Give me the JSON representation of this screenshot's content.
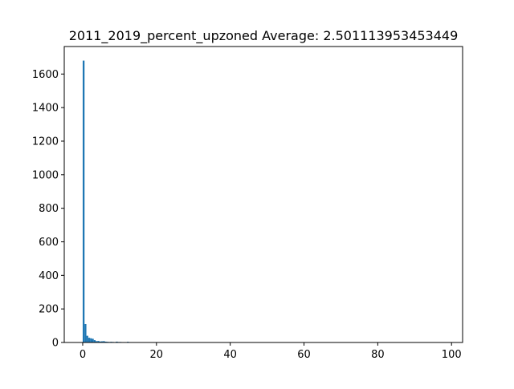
{
  "chart_data": {
    "type": "bar",
    "title": "2011_2019_percent_upzoned  Average: 2.501113953453449",
    "xlabel": "",
    "ylabel": "",
    "xlim": [
      -5,
      103
    ],
    "ylim": [
      0,
      1764
    ],
    "xticks": [
      0,
      20,
      40,
      60,
      80,
      100
    ],
    "yticks": [
      0,
      200,
      400,
      600,
      800,
      1000,
      1200,
      1400,
      1600
    ],
    "grid": false,
    "legend": "none",
    "bar_color": "#1f77b4",
    "bin_width": 0.5,
    "bins": [
      {
        "x": 0.0,
        "value": 1680
      },
      {
        "x": 0.5,
        "value": 110
      },
      {
        "x": 1.0,
        "value": 40
      },
      {
        "x": 1.5,
        "value": 28
      },
      {
        "x": 2.0,
        "value": 25
      },
      {
        "x": 2.5,
        "value": 22
      },
      {
        "x": 3.0,
        "value": 14
      },
      {
        "x": 3.5,
        "value": 8
      },
      {
        "x": 4.0,
        "value": 9
      },
      {
        "x": 4.5,
        "value": 6
      },
      {
        "x": 5.0,
        "value": 7
      },
      {
        "x": 5.5,
        "value": 8
      },
      {
        "x": 6.0,
        "value": 5
      },
      {
        "x": 6.5,
        "value": 4
      },
      {
        "x": 7.0,
        "value": 3
      },
      {
        "x": 7.5,
        "value": 4
      },
      {
        "x": 8.0,
        "value": 3
      },
      {
        "x": 8.5,
        "value": 2
      },
      {
        "x": 9.0,
        "value": 5
      },
      {
        "x": 9.5,
        "value": 3
      },
      {
        "x": 10.0,
        "value": 3
      },
      {
        "x": 10.5,
        "value": 2
      },
      {
        "x": 11.0,
        "value": 2
      },
      {
        "x": 12.0,
        "value": 4
      },
      {
        "x": 13.0,
        "value": 2
      },
      {
        "x": 14.0,
        "value": 2
      },
      {
        "x": 15.5,
        "value": 2
      },
      {
        "x": 16.5,
        "value": 2
      },
      {
        "x": 17.0,
        "value": 1
      },
      {
        "x": 19.0,
        "value": 1
      },
      {
        "x": 22.0,
        "value": 1
      },
      {
        "x": 25.0,
        "value": 1
      }
    ]
  }
}
